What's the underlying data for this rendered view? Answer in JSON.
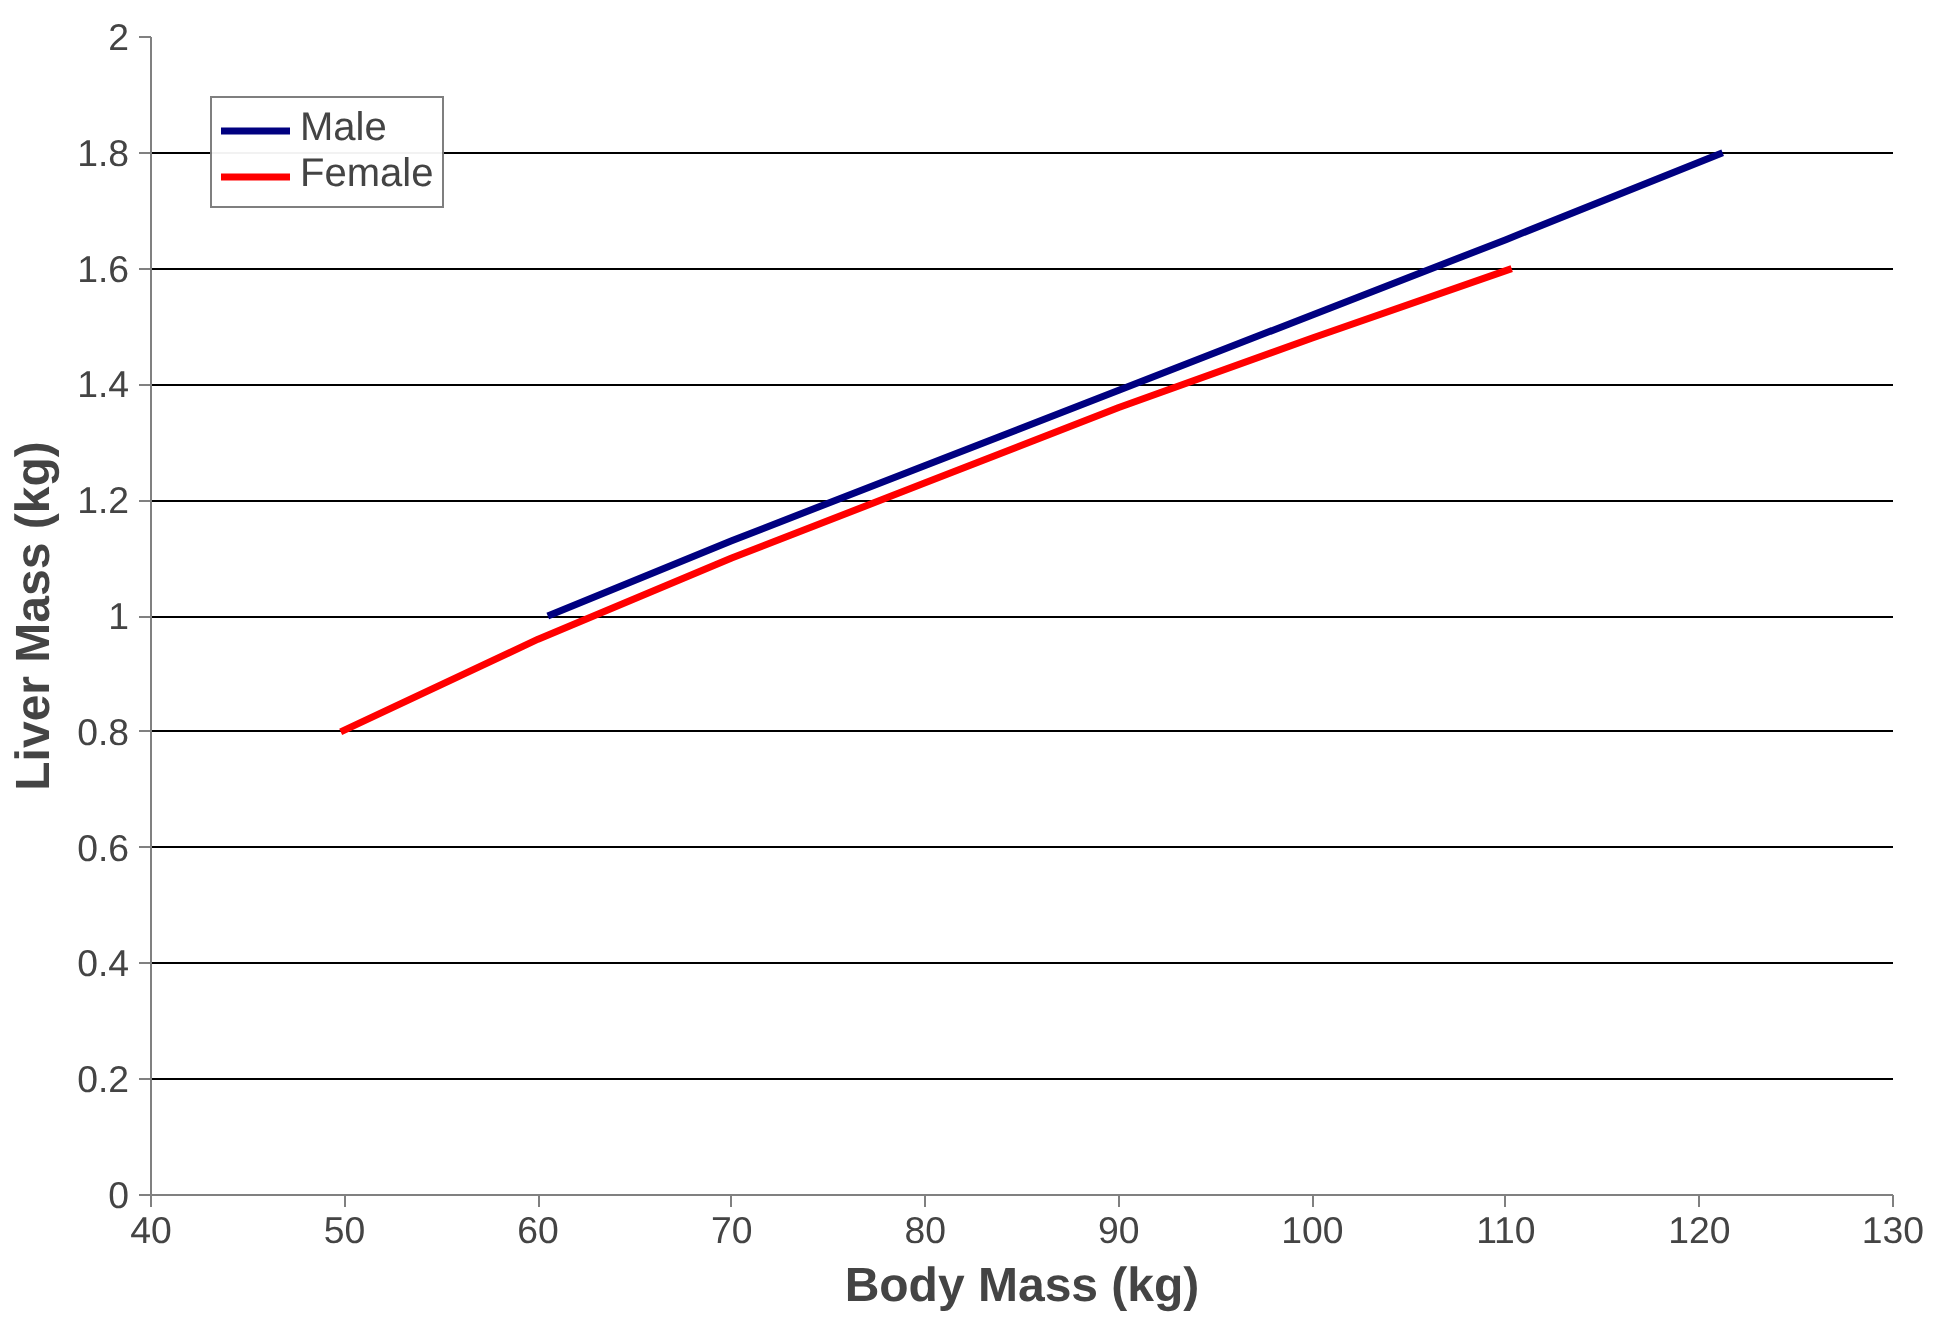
{
  "chart_data": {
    "type": "line",
    "xlabel": "Body Mass (kg)",
    "ylabel": "Liver Mass (kg)",
    "xlim": [
      40,
      130
    ],
    "xticks": [
      40,
      50,
      60,
      70,
      80,
      90,
      100,
      110,
      120,
      130
    ],
    "ylim": [
      0,
      2
    ],
    "yticks": [
      0,
      0.2,
      0.4,
      0.6,
      0.8,
      1,
      1.2,
      1.4,
      1.6,
      1.8,
      2
    ],
    "grid": "y",
    "legend": "top left",
    "marker": "none",
    "line_style": "solid",
    "series": [
      {
        "name": "Male",
        "color": "#000080",
        "x": [
          60.5,
          70,
          80,
          90,
          100,
          110,
          121.2
        ],
        "values": [
          1.0,
          1.13,
          1.26,
          1.39,
          1.52,
          1.65,
          1.8
        ]
      },
      {
        "name": "Female",
        "color": "#ff0000",
        "x": [
          49.8,
          60,
          70,
          80,
          90,
          100,
          110.3
        ],
        "values": [
          0.8,
          0.96,
          1.1,
          1.23,
          1.36,
          1.48,
          1.6
        ]
      }
    ]
  }
}
